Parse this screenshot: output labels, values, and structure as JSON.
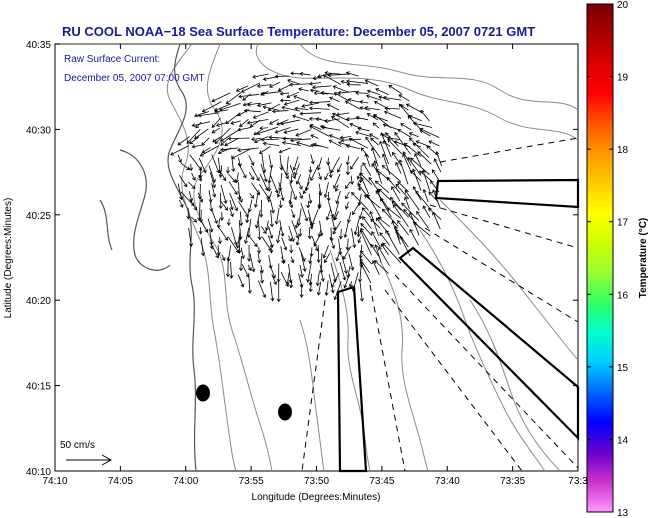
{
  "title": "RU COOL  NOAA−18  Sea Surface Temperature:  December 05, 2007 0721 GMT",
  "annotation": {
    "line1": "Raw Surface Current:",
    "line2": "December 05, 2007 07:00 GMT"
  },
  "x_axis": {
    "label": "Longitude (Degrees:Minutes)",
    "ticks": [
      "74:10",
      "74:05",
      "74:00",
      "73:55",
      "73:50",
      "73:45",
      "73:40",
      "73:35",
      "73:3"
    ],
    "range_minutes": [
      -10,
      30
    ]
  },
  "y_axis": {
    "label": "Latitude (Degrees:Minutes)",
    "ticks": [
      "40:10",
      "40:15",
      "40:20",
      "40:25",
      "40:30",
      "40:35"
    ],
    "range_minutes": [
      10,
      35
    ]
  },
  "colorbar": {
    "label": "Temperature (°C)",
    "ticks": [
      "20",
      "19",
      "18",
      "17",
      "16",
      "15",
      "14",
      "13"
    ],
    "range": [
      13,
      20
    ],
    "colors": [
      "#ff99ff",
      "#cc33cc",
      "#6600cc",
      "#0000ff",
      "#0066ff",
      "#00ccff",
      "#00ffcc",
      "#33ff66",
      "#99ff33",
      "#ccff00",
      "#ffff00",
      "#ffcc00",
      "#ff9900",
      "#ff5500",
      "#ff0000",
      "#dd0000",
      "#aa0000",
      "#770000"
    ]
  },
  "scale_arrow": {
    "label": "50 cm/s"
  },
  "frame_color": "#000000",
  "contour_color": "#8a8a8a"
}
